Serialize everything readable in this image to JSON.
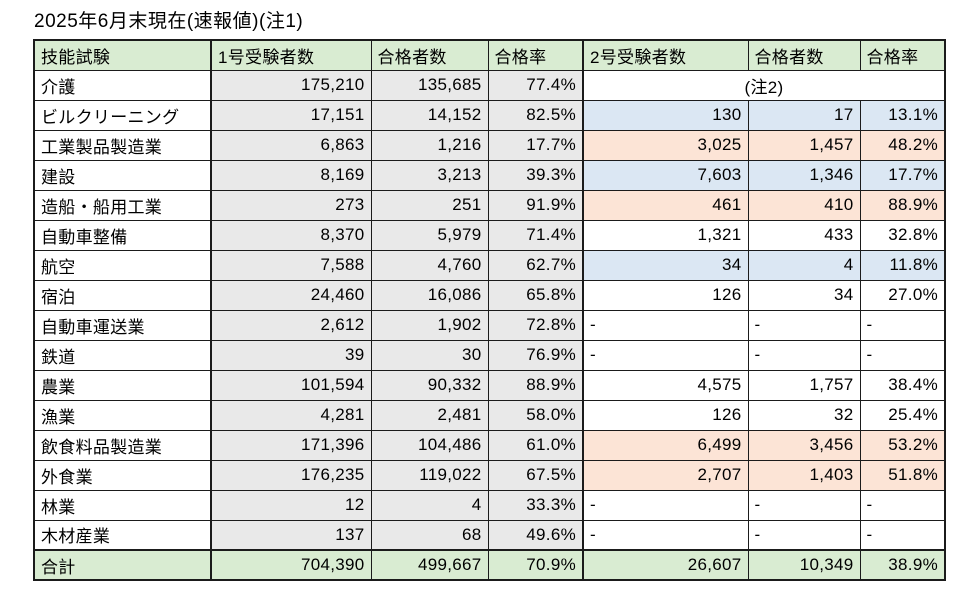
{
  "title": "2025年6月末現在(速報値)(注1)",
  "colors": {
    "header_green": "#d9ecd2",
    "col1_gray": "#e9e9e9",
    "highlight_blue": "#dbe7f3",
    "highlight_peach": "#fce4d6",
    "border": "#1b1b1b"
  },
  "table": {
    "headers": [
      "技能試験",
      "1号受験者数",
      "合格者数",
      "合格率",
      "2号受験者数",
      "合格者数",
      "合格率"
    ],
    "note_cell": "(注2)",
    "rows": [
      {
        "label": "介護",
        "n1": "175,210",
        "p1": "135,685",
        "r1": "77.4%",
        "note": true
      },
      {
        "label": "ビルクリーニング",
        "n1": "17,151",
        "p1": "14,152",
        "r1": "82.5%",
        "n2": "130",
        "p2": "17",
        "r2": "13.1%",
        "hl": "blue"
      },
      {
        "label": "工業製品製造業",
        "n1": "6,863",
        "p1": "1,216",
        "r1": "17.7%",
        "n2": "3,025",
        "p2": "1,457",
        "r2": "48.2%",
        "hl": "orange"
      },
      {
        "label": "建設",
        "n1": "8,169",
        "p1": "3,213",
        "r1": "39.3%",
        "n2": "7,603",
        "p2": "1,346",
        "r2": "17.7%",
        "hl": "blue"
      },
      {
        "label": "造船・船用工業",
        "n1": "273",
        "p1": "251",
        "r1": "91.9%",
        "n2": "461",
        "p2": "410",
        "r2": "88.9%",
        "hl": "orange"
      },
      {
        "label": "自動車整備",
        "n1": "8,370",
        "p1": "5,979",
        "r1": "71.4%",
        "n2": "1,321",
        "p2": "433",
        "r2": "32.8%",
        "hl": "none"
      },
      {
        "label": "航空",
        "n1": "7,588",
        "p1": "4,760",
        "r1": "62.7%",
        "n2": "34",
        "p2": "4",
        "r2": "11.8%",
        "hl": "blue"
      },
      {
        "label": "宿泊",
        "n1": "24,460",
        "p1": "16,086",
        "r1": "65.8%",
        "n2": "126",
        "p2": "34",
        "r2": "27.0%",
        "hl": "none"
      },
      {
        "label": "自動車運送業",
        "n1": "2,612",
        "p1": "1,902",
        "r1": "72.8%",
        "n2": "-",
        "p2": "-",
        "r2": "-",
        "hl": "none",
        "dash": true
      },
      {
        "label": "鉄道",
        "n1": "39",
        "p1": "30",
        "r1": "76.9%",
        "n2": "-",
        "p2": "-",
        "r2": "-",
        "hl": "none",
        "dash": true
      },
      {
        "label": "農業",
        "n1": "101,594",
        "p1": "90,332",
        "r1": "88.9%",
        "n2": "4,575",
        "p2": "1,757",
        "r2": "38.4%",
        "hl": "none"
      },
      {
        "label": "漁業",
        "n1": "4,281",
        "p1": "2,481",
        "r1": "58.0%",
        "n2": "126",
        "p2": "32",
        "r2": "25.4%",
        "hl": "none"
      },
      {
        "label": "飲食料品製造業",
        "n1": "171,396",
        "p1": "104,486",
        "r1": "61.0%",
        "n2": "6,499",
        "p2": "3,456",
        "r2": "53.2%",
        "hl": "orange"
      },
      {
        "label": "外食業",
        "n1": "176,235",
        "p1": "119,022",
        "r1": "67.5%",
        "n2": "2,707",
        "p2": "1,403",
        "r2": "51.8%",
        "hl": "orange"
      },
      {
        "label": "林業",
        "n1": "12",
        "p1": "4",
        "r1": "33.3%",
        "n2": "-",
        "p2": "-",
        "r2": "-",
        "hl": "none",
        "dash": true
      },
      {
        "label": "木材産業",
        "n1": "137",
        "p1": "68",
        "r1": "49.6%",
        "n2": "-",
        "p2": "-",
        "r2": "-",
        "hl": "none",
        "dash": true
      }
    ],
    "total": {
      "label": "合計",
      "n1": "704,390",
      "p1": "499,667",
      "r1": "70.9%",
      "n2": "26,607",
      "p2": "10,349",
      "r2": "38.9%"
    }
  }
}
